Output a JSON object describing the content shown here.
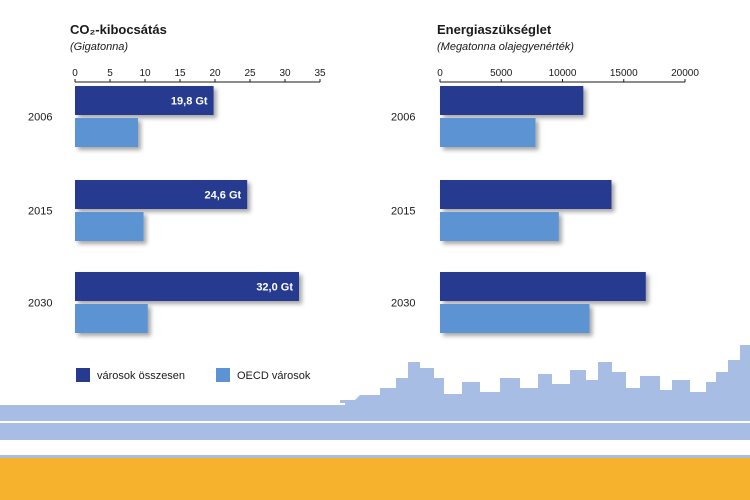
{
  "colors": {
    "cities_total": "#263a8f",
    "oecd_cities": "#5b93d3",
    "skyline": "#a8bde3",
    "skyline_line": "#ffffff",
    "ground": "#f6b22d"
  },
  "legend": {
    "total_label": "városok összesen",
    "oecd_label": "OECD városok"
  },
  "chart_data": [
    {
      "type": "bar",
      "title": "CO₂-kibocsátás",
      "subtitle": "(Gigatonna)",
      "categories": [
        "2006",
        "2015",
        "2030"
      ],
      "xlim": [
        0,
        35
      ],
      "ticks": [
        "0",
        "5",
        "10",
        "15",
        "20",
        "25",
        "30",
        "35"
      ],
      "tick_values": [
        0,
        5,
        10,
        15,
        20,
        25,
        30,
        35
      ],
      "series": [
        {
          "name": "városok összesen",
          "values": [
            19.8,
            24.6,
            32.0
          ],
          "labels": [
            "19,8 Gt",
            "24,6 Gt",
            "32,0 Gt"
          ]
        },
        {
          "name": "OECD városok",
          "values": [
            9.0,
            9.8,
            10.4
          ],
          "labels": [
            "",
            "",
            ""
          ]
        }
      ]
    },
    {
      "type": "bar",
      "title": "Energiaszükséglet",
      "subtitle": "(Megatonna olajegyenérték)",
      "categories": [
        "2006",
        "2015",
        "2030"
      ],
      "xlim": [
        0,
        20000
      ],
      "ticks": [
        "0",
        "5000",
        "10000",
        "15000",
        "20000"
      ],
      "tick_values": [
        0,
        5000,
        10000,
        15000,
        20000
      ],
      "series": [
        {
          "name": "városok összesen",
          "values": [
            11700,
            14000,
            16800
          ],
          "labels": [
            "",
            "",
            ""
          ]
        },
        {
          "name": "OECD városok",
          "values": [
            7800,
            9700,
            12200
          ],
          "labels": [
            "",
            "",
            ""
          ]
        }
      ]
    }
  ]
}
